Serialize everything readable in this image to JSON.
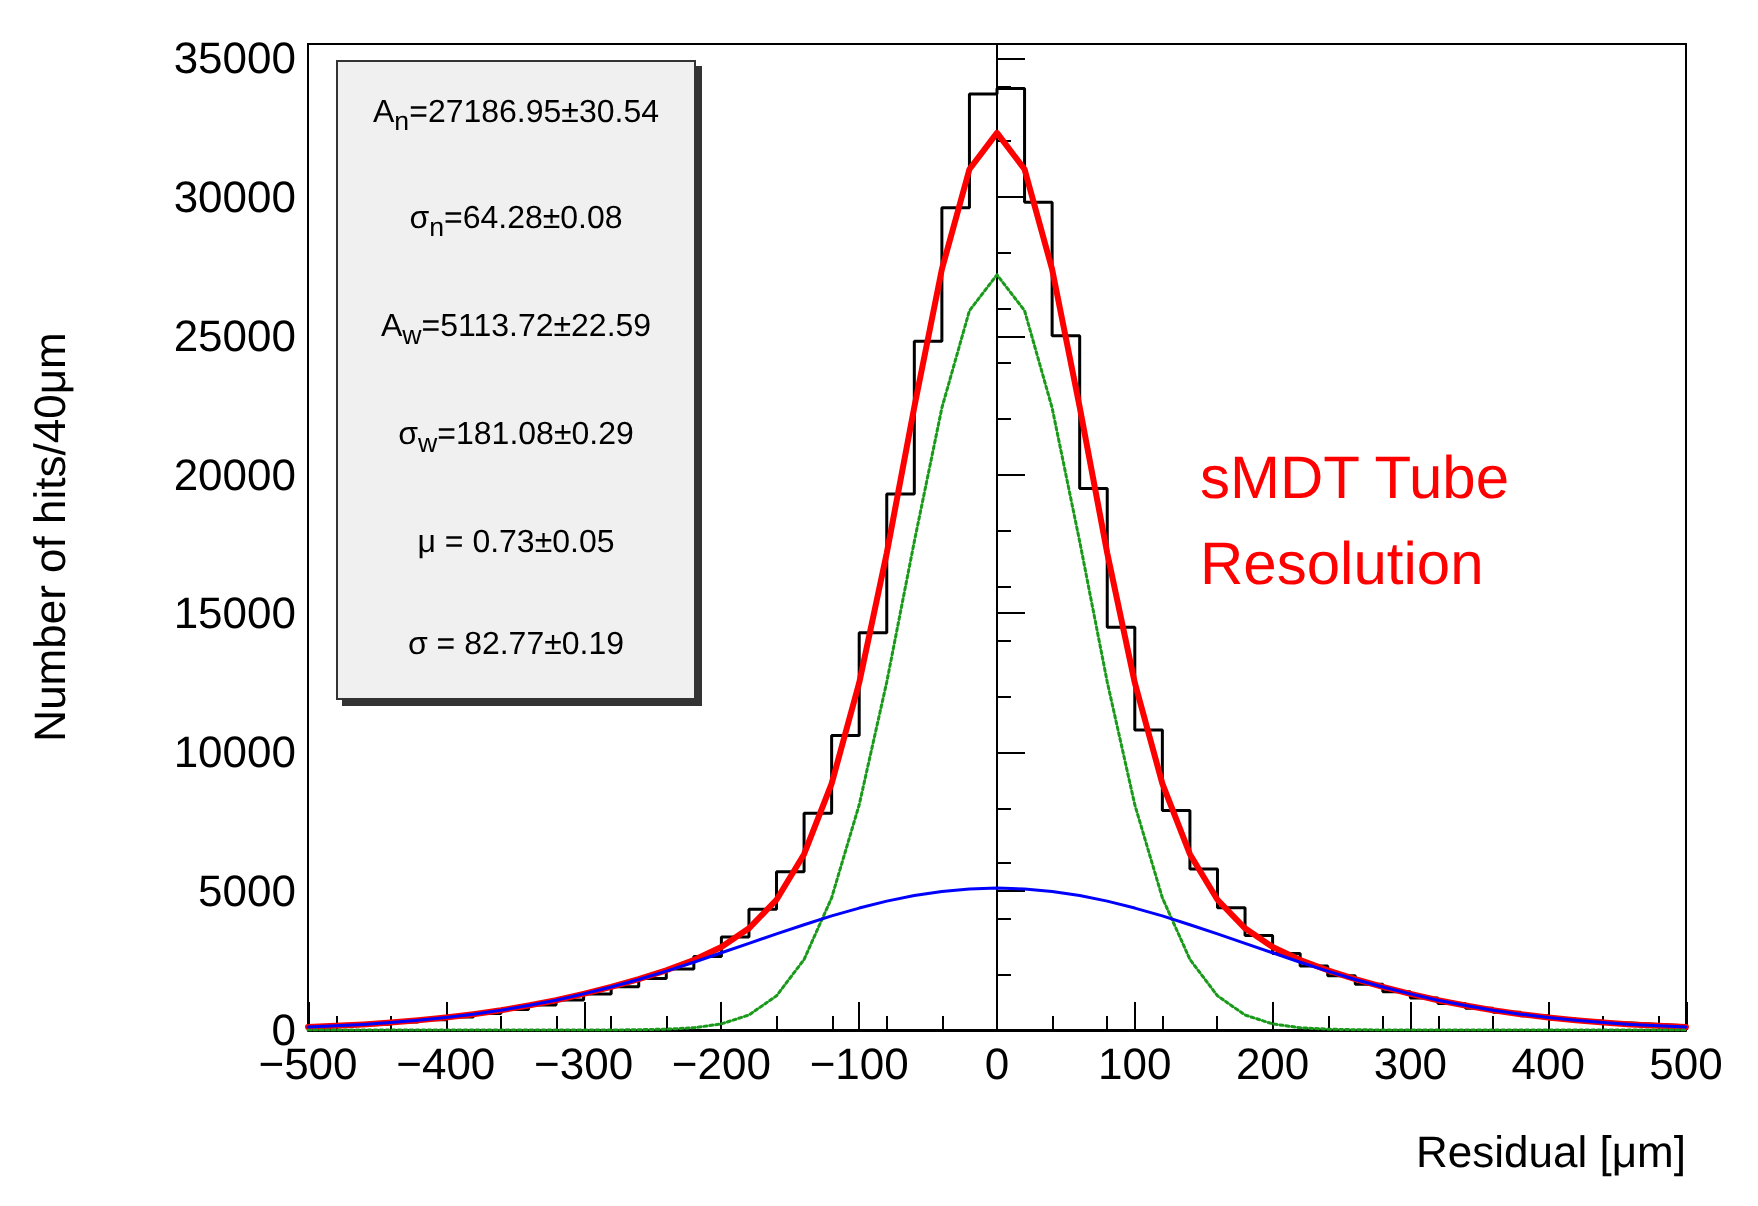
{
  "chart_data": {
    "type": "line",
    "xlabel": "Residual [μm]",
    "ylabel": "Number of hits/40μm",
    "annotations": [
      "A$_{n}$=27186.95±30.54",
      "σ$_{n}$=64.28±0.08",
      "A$_{w}$=5113.72±22.59",
      "σ$_{w}$=181.08±0.29",
      "μ = 0.73±0.05",
      "σ = 82.77±0.19",
      "sMDT Tube Resolution"
    ],
    "xlim": [
      -500,
      500
    ],
    "xticks": [
      {
        "value": -500,
        "label": "−500"
      },
      {
        "value": -400,
        "label": "−400"
      },
      {
        "value": -300,
        "label": "−300"
      },
      {
        "value": -200,
        "label": "−200"
      },
      {
        "value": -100,
        "label": "−100"
      },
      0,
      100,
      200,
      300,
      400,
      500
    ],
    "ylim": [
      0,
      35500
    ],
    "yticks": [
      0,
      5000,
      10000,
      15000,
      20000,
      25000,
      30000,
      35000
    ],
    "marker": "none",
    "series": [
      {
        "type": "histogram",
        "color": "#000000",
        "bins": [
          -500,
          -480,
          -460,
          -440,
          -420,
          -400,
          -380,
          -360,
          -340,
          -320,
          -300,
          -280,
          -260,
          -240,
          -220,
          -200,
          -180,
          -160,
          -140,
          -120,
          -100,
          -80,
          -60,
          -40,
          -20,
          0,
          20,
          40,
          60,
          80,
          100,
          120,
          140,
          160,
          180,
          200,
          220,
          240,
          260,
          280,
          300,
          320,
          340,
          360,
          380,
          400,
          420,
          440,
          460,
          480,
          500
        ],
        "values": [
          130,
          170,
          220,
          290,
          370,
          470,
          590,
          740,
          900,
          1080,
          1300,
          1560,
          1850,
          2200,
          2650,
          3350,
          4350,
          5700,
          7800,
          10600,
          14300,
          19300,
          24800,
          29600,
          33700,
          33900,
          29800,
          25000,
          19500,
          14500,
          10800,
          7900,
          5800,
          4400,
          3400,
          2750,
          2300,
          1950,
          1650,
          1380,
          1150,
          950,
          780,
          640,
          510,
          400,
          320,
          250,
          200,
          150
        ]
      },
      {
        "type": "line",
        "color": "#1a9a1a",
        "line_style": "dotted",
        "x": [
          -500,
          -480,
          -460,
          -440,
          -420,
          -400,
          -380,
          -360,
          -340,
          -320,
          -300,
          -280,
          -260,
          -240,
          -220,
          -200,
          -180,
          -160,
          -140,
          -120,
          -100,
          -80,
          -60,
          -40,
          -20,
          0,
          20,
          40,
          60,
          80,
          100,
          120,
          140,
          160,
          180,
          200,
          220,
          240,
          260,
          280,
          300,
          320,
          340,
          360,
          380,
          400,
          420,
          440,
          460,
          480,
          500
        ],
        "values": [
          0,
          0,
          0,
          0,
          0,
          0,
          0,
          0,
          0,
          0,
          0,
          0,
          10,
          30,
          80,
          220,
          540,
          1230,
          2540,
          4760,
          8110,
          12530,
          17590,
          22400,
          25900,
          27190,
          25900,
          22400,
          17590,
          12530,
          8110,
          4760,
          2540,
          1230,
          540,
          220,
          80,
          30,
          10,
          0,
          0,
          0,
          0,
          0,
          0,
          0,
          0,
          0,
          0,
          0,
          0
        ]
      },
      {
        "type": "line",
        "color": "#0000ff",
        "x": [
          -500,
          -480,
          -460,
          -440,
          -420,
          -400,
          -380,
          -360,
          -340,
          -320,
          -300,
          -280,
          -260,
          -240,
          -220,
          -200,
          -180,
          -160,
          -140,
          -120,
          -100,
          -80,
          -60,
          -40,
          -20,
          0,
          20,
          40,
          60,
          80,
          100,
          120,
          140,
          160,
          180,
          200,
          220,
          240,
          260,
          280,
          300,
          320,
          340,
          360,
          380,
          400,
          420,
          440,
          460,
          480,
          500
        ],
        "values": [
          110,
          150,
          200,
          270,
          350,
          450,
          570,
          710,
          880,
          1070,
          1300,
          1550,
          1820,
          2120,
          2440,
          2780,
          3120,
          3460,
          3790,
          4110,
          4390,
          4640,
          4840,
          4990,
          5080,
          5110,
          5080,
          4990,
          4840,
          4640,
          4390,
          4110,
          3790,
          3460,
          3120,
          2780,
          2440,
          2120,
          1820,
          1550,
          1300,
          1070,
          880,
          710,
          570,
          450,
          350,
          270,
          200,
          150,
          110
        ]
      },
      {
        "type": "line",
        "color": "#ff0000",
        "x": [
          -500,
          -480,
          -460,
          -440,
          -420,
          -400,
          -380,
          -360,
          -340,
          -320,
          -300,
          -280,
          -260,
          -240,
          -220,
          -200,
          -180,
          -160,
          -140,
          -120,
          -100,
          -80,
          -60,
          -40,
          -20,
          0,
          20,
          40,
          60,
          80,
          100,
          120,
          140,
          160,
          180,
          200,
          220,
          240,
          260,
          280,
          300,
          320,
          340,
          360,
          380,
          400,
          420,
          440,
          460,
          480,
          500
        ],
        "values": [
          110,
          150,
          200,
          270,
          350,
          450,
          570,
          710,
          880,
          1070,
          1300,
          1550,
          1830,
          2150,
          2520,
          2990,
          3660,
          4690,
          6330,
          8870,
          12500,
          17170,
          22430,
          27390,
          30990,
          32300,
          30990,
          27390,
          22430,
          17170,
          12500,
          8870,
          6330,
          4690,
          3660,
          2990,
          2520,
          2150,
          1830,
          1550,
          1300,
          1070,
          880,
          710,
          570,
          450,
          350,
          270,
          200,
          150,
          110
        ]
      }
    ]
  }
}
